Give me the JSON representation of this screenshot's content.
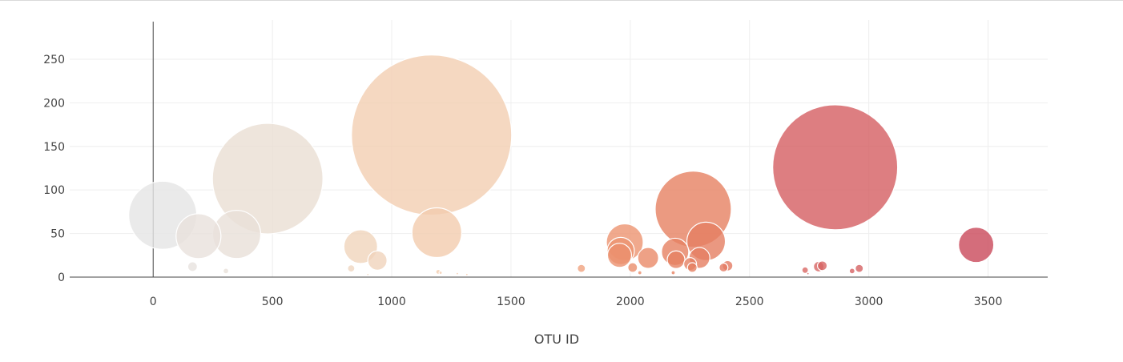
{
  "chart_data": {
    "type": "scatter",
    "title": "",
    "xlabel": "OTU ID",
    "ylabel": "",
    "xlim": [
      -350,
      3750
    ],
    "ylim": [
      0,
      295
    ],
    "x_ticks": [
      0,
      500,
      1000,
      1500,
      2000,
      2500,
      3000,
      3500
    ],
    "y_ticks": [
      0,
      50,
      100,
      150,
      200,
      250
    ],
    "grid": true,
    "legend": "none",
    "colorscale": [
      "#e5e5e5",
      "#efd6c0",
      "#f7c19c",
      "#e88462",
      "#d76564",
      "#c9485a"
    ],
    "series": [
      {
        "x": [
          40,
          190,
          350,
          480,
          870,
          940,
          1167,
          1189,
          1795,
          1977,
          1960,
          1955,
          2010,
          2075,
          2188,
          2192,
          2264,
          2290,
          2318,
          2251,
          2260,
          2391,
          2408,
          2859,
          3450,
          2790,
          2805,
          2733,
          2930,
          2960,
          165,
          305,
          830,
          1195,
          2040,
          2180,
          900,
          1205,
          1275,
          1315,
          2745
        ],
        "y": [
          71,
          47,
          49,
          113,
          35,
          19,
          163,
          51,
          10,
          40,
          30,
          25,
          11,
          22,
          29,
          20,
          78,
          22,
          41,
          15,
          11,
          11,
          13,
          126,
          37,
          12,
          13,
          8,
          7,
          10,
          12,
          7,
          10,
          6,
          5,
          5,
          3,
          5,
          4,
          3,
          4
        ],
        "size": [
          85,
          56,
          60,
          138,
          42,
          24,
          200,
          62,
          10,
          46,
          34,
          30,
          12,
          26,
          34,
          22,
          95,
          26,
          48,
          16,
          12,
          11,
          13,
          156,
          44,
          13,
          12,
          8,
          7,
          10,
          12,
          7,
          9,
          6,
          5,
          5,
          3,
          4,
          3,
          2,
          3
        ],
        "color": [
          0.0,
          0.05,
          0.07,
          0.1,
          0.22,
          0.23,
          0.28,
          0.3,
          0.5,
          0.55,
          0.55,
          0.56,
          0.57,
          0.58,
          0.62,
          0.62,
          0.62,
          0.64,
          0.64,
          0.63,
          0.63,
          0.66,
          0.66,
          0.85,
          1.0,
          0.8,
          0.8,
          0.78,
          0.82,
          0.83,
          0.04,
          0.06,
          0.2,
          0.3,
          0.57,
          0.61,
          0.22,
          0.3,
          0.33,
          0.34,
          0.78
        ]
      }
    ]
  }
}
